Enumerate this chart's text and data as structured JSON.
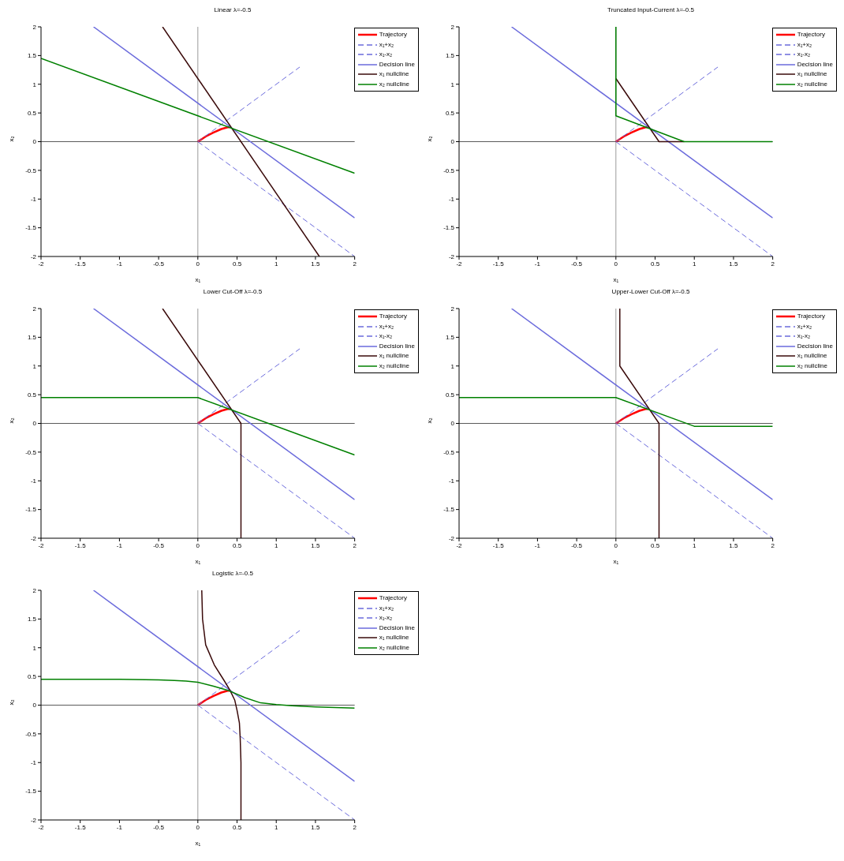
{
  "chart_data": [
    {
      "type": "line",
      "title": "Linear λ=-0.5",
      "xlabel": "x₁",
      "ylabel": "x₂",
      "xlim": [
        -2,
        2
      ],
      "ylim": [
        -2,
        2
      ],
      "xticks": [
        -2,
        -1.5,
        -1,
        -0.5,
        0,
        0.5,
        1,
        1.5,
        2
      ],
      "yticks": [
        -2,
        -1.5,
        -1,
        -0.5,
        0,
        0.5,
        1,
        1.5,
        2
      ],
      "grid": false,
      "legend": "top right",
      "ref_lines": [
        {
          "axis": "x",
          "value": 0,
          "color": "#808080"
        },
        {
          "axis": "y",
          "value": 0,
          "color": "#303030"
        }
      ],
      "series": [
        {
          "name": "Trajectory",
          "color": "#ff0000",
          "line_style": "solid",
          "x": [
            0,
            0.1,
            0.2,
            0.3,
            0.38,
            0.41
          ],
          "values": [
            0,
            0.09,
            0.16,
            0.22,
            0.25,
            0.25
          ]
        },
        {
          "name": "x₁+x₂",
          "color": "#6b6bdc",
          "line_style": "dashed",
          "x": [
            0,
            1.3
          ],
          "values": [
            0,
            1.3
          ]
        },
        {
          "name": "x₁-x₂",
          "color": "#6b6bdc",
          "line_style": "dashed",
          "x": [
            0,
            2
          ],
          "values": [
            0,
            -2
          ]
        },
        {
          "name": "Decision line",
          "color": "#6b6bdc",
          "line_style": "solid",
          "x": [
            -1.33,
            2
          ],
          "values": [
            2,
            -1.33
          ]
        },
        {
          "name": "x₁ nullcline",
          "color": "#3a0a0a",
          "line_style": "solid",
          "x": [
            -0.45,
            1.55
          ],
          "values": [
            2,
            -2
          ]
        },
        {
          "name": "x₂ nullcline",
          "color": "#008000",
          "line_style": "solid",
          "x": [
            -2,
            2
          ],
          "values": [
            1.45,
            -0.55
          ]
        }
      ]
    },
    {
      "type": "line",
      "title": "Truncated Input-Current λ=-0.5",
      "xlabel": "x₁",
      "ylabel": "x₂",
      "xlim": [
        -2,
        2
      ],
      "ylim": [
        -2,
        2
      ],
      "xticks": [
        -2,
        -1.5,
        -1,
        -0.5,
        0,
        0.5,
        1,
        1.5,
        2
      ],
      "yticks": [
        -2,
        -1.5,
        -1,
        -0.5,
        0,
        0.5,
        1,
        1.5,
        2
      ],
      "grid": false,
      "legend": "top right",
      "ref_lines": [
        {
          "axis": "x",
          "value": 0,
          "color": "#808080"
        },
        {
          "axis": "y",
          "value": 0,
          "color": "#303030"
        }
      ],
      "series": [
        {
          "name": "Trajectory",
          "color": "#ff0000",
          "line_style": "solid",
          "x": [
            0,
            0.1,
            0.2,
            0.3,
            0.38,
            0.41
          ],
          "values": [
            0,
            0.09,
            0.16,
            0.22,
            0.25,
            0.25
          ]
        },
        {
          "name": "x₁+x₂",
          "color": "#6b6bdc",
          "line_style": "dashed",
          "x": [
            0,
            1.3
          ],
          "values": [
            0,
            1.3
          ]
        },
        {
          "name": "x₁-x₂",
          "color": "#6b6bdc",
          "line_style": "dashed",
          "x": [
            0,
            2
          ],
          "values": [
            0,
            -2
          ]
        },
        {
          "name": "Decision line",
          "color": "#6b6bdc",
          "line_style": "solid",
          "x": [
            -1.33,
            2
          ],
          "values": [
            2,
            -1.33
          ]
        },
        {
          "name": "x₁ nullcline",
          "color": "#3a0a0a",
          "line_style": "solid",
          "x": [
            0,
            0.55,
            0.87
          ],
          "values": [
            1.1,
            0,
            0
          ]
        },
        {
          "name": "x₂ nullcline",
          "color": "#008000",
          "line_style": "solid",
          "x": [
            0,
            0,
            0.87,
            2
          ],
          "values": [
            2,
            0.45,
            0,
            0
          ]
        }
      ]
    },
    {
      "type": "line",
      "title": "Lower Cut-Off λ=-0.5",
      "xlabel": "x₁",
      "ylabel": "x₂",
      "xlim": [
        -2,
        2
      ],
      "ylim": [
        -2,
        2
      ],
      "xticks": [
        -2,
        -1.5,
        -1,
        -0.5,
        0,
        0.5,
        1,
        1.5,
        2
      ],
      "yticks": [
        -2,
        -1.5,
        -1,
        -0.5,
        0,
        0.5,
        1,
        1.5,
        2
      ],
      "grid": false,
      "legend": "top right",
      "ref_lines": [
        {
          "axis": "x",
          "value": 0,
          "color": "#808080"
        },
        {
          "axis": "y",
          "value": 0,
          "color": "#303030"
        }
      ],
      "series": [
        {
          "name": "Trajectory",
          "color": "#ff0000",
          "line_style": "solid",
          "x": [
            0,
            0.1,
            0.2,
            0.3,
            0.38,
            0.41
          ],
          "values": [
            0,
            0.09,
            0.16,
            0.22,
            0.25,
            0.25
          ]
        },
        {
          "name": "x₁+x₂",
          "color": "#6b6bdc",
          "line_style": "dashed",
          "x": [
            0,
            1.3
          ],
          "values": [
            0,
            1.3
          ]
        },
        {
          "name": "x₁-x₂",
          "color": "#6b6bdc",
          "line_style": "dashed",
          "x": [
            0,
            2
          ],
          "values": [
            0,
            -2
          ]
        },
        {
          "name": "Decision line",
          "color": "#6b6bdc",
          "line_style": "solid",
          "x": [
            -1.33,
            2
          ],
          "values": [
            2,
            -1.33
          ]
        },
        {
          "name": "x₁ nullcline",
          "color": "#3a0a0a",
          "line_style": "solid",
          "x": [
            -0.45,
            0.55,
            0.55
          ],
          "values": [
            2,
            0,
            -2
          ]
        },
        {
          "name": "x₂ nullcline",
          "color": "#008000",
          "line_style": "solid",
          "x": [
            -2,
            0,
            2
          ],
          "values": [
            0.45,
            0.45,
            -0.55
          ]
        }
      ]
    },
    {
      "type": "line",
      "title": "Upper-Lower Cut-Off λ=-0.5",
      "xlabel": "x₁",
      "ylabel": "x₂",
      "xlim": [
        -2,
        2
      ],
      "ylim": [
        -2,
        2
      ],
      "xticks": [
        -2,
        -1.5,
        -1,
        -0.5,
        0,
        0.5,
        1,
        1.5,
        2
      ],
      "yticks": [
        -2,
        -1.5,
        -1,
        -0.5,
        0,
        0.5,
        1,
        1.5,
        2
      ],
      "grid": false,
      "legend": "top right",
      "ref_lines": [
        {
          "axis": "x",
          "value": 0,
          "color": "#808080"
        },
        {
          "axis": "y",
          "value": 0,
          "color": "#303030"
        }
      ],
      "series": [
        {
          "name": "Trajectory",
          "color": "#ff0000",
          "line_style": "solid",
          "x": [
            0,
            0.1,
            0.2,
            0.3,
            0.38,
            0.41
          ],
          "values": [
            0,
            0.09,
            0.16,
            0.22,
            0.25,
            0.25
          ]
        },
        {
          "name": "x₁+x₂",
          "color": "#6b6bdc",
          "line_style": "dashed",
          "x": [
            0,
            1.3
          ],
          "values": [
            0,
            1.3
          ]
        },
        {
          "name": "x₁-x₂",
          "color": "#6b6bdc",
          "line_style": "dashed",
          "x": [
            0,
            2
          ],
          "values": [
            0,
            -2
          ]
        },
        {
          "name": "Decision line",
          "color": "#6b6bdc",
          "line_style": "solid",
          "x": [
            -1.33,
            2
          ],
          "values": [
            2,
            -1.33
          ]
        },
        {
          "name": "x₁ nullcline",
          "color": "#3a0a0a",
          "line_style": "solid",
          "x": [
            0.05,
            0.05,
            0.55,
            0.55
          ],
          "values": [
            2,
            1,
            0,
            -2
          ]
        },
        {
          "name": "x₂ nullcline",
          "color": "#008000",
          "line_style": "solid",
          "x": [
            -2,
            0,
            1,
            2
          ],
          "values": [
            0.45,
            0.45,
            -0.05,
            -0.05
          ]
        }
      ]
    },
    {
      "type": "line",
      "title": "Logistic λ=-0.5",
      "xlabel": "x₁",
      "ylabel": "x₂",
      "xlim": [
        -2,
        2
      ],
      "ylim": [
        -2,
        2
      ],
      "xticks": [
        -2,
        -1.5,
        -1,
        -0.5,
        0,
        0.5,
        1,
        1.5,
        2
      ],
      "yticks": [
        -2,
        -1.5,
        -1,
        -0.5,
        0,
        0.5,
        1,
        1.5,
        2
      ],
      "grid": false,
      "legend": "top right",
      "ref_lines": [
        {
          "axis": "x",
          "value": 0,
          "color": "#808080"
        },
        {
          "axis": "y",
          "value": 0,
          "color": "#303030"
        }
      ],
      "series": [
        {
          "name": "Trajectory",
          "color": "#ff0000",
          "line_style": "solid",
          "x": [
            0,
            0.1,
            0.2,
            0.3,
            0.38,
            0.41
          ],
          "values": [
            0,
            0.09,
            0.16,
            0.22,
            0.25,
            0.25
          ]
        },
        {
          "name": "x₁+x₂",
          "color": "#6b6bdc",
          "line_style": "dashed",
          "x": [
            0,
            1.3
          ],
          "values": [
            0,
            1.3
          ]
        },
        {
          "name": "x₁-x₂",
          "color": "#6b6bdc",
          "line_style": "dashed",
          "x": [
            0,
            2
          ],
          "values": [
            0,
            -2
          ]
        },
        {
          "name": "Decision line",
          "color": "#6b6bdc",
          "line_style": "solid",
          "x": [
            -1.33,
            2
          ],
          "values": [
            2,
            -1.33
          ]
        },
        {
          "name": "x₁ nullcline",
          "color": "#3a0a0a",
          "line_style": "solid",
          "x": [
            0.05,
            0.06,
            0.1,
            0.21,
            0.33,
            0.41,
            0.47,
            0.5,
            0.53,
            0.54,
            0.55,
            0.55
          ],
          "values": [
            2,
            1.5,
            1.05,
            0.7,
            0.44,
            0.26,
            0.09,
            -0.09,
            -0.31,
            -0.57,
            -1,
            -2
          ]
        },
        {
          "name": "x₂ nullcline",
          "color": "#008000",
          "line_style": "solid",
          "x": [
            -2,
            -1,
            -0.5,
            -0.3,
            -0.15,
            0,
            0.2,
            0.4,
            0.6,
            0.8,
            1,
            1.2,
            1.5,
            2
          ],
          "values": [
            0.45,
            0.45,
            0.44,
            0.43,
            0.42,
            0.4,
            0.33,
            0.25,
            0.13,
            0.04,
            0.01,
            -0.01,
            -0.03,
            -0.05
          ]
        }
      ]
    }
  ]
}
